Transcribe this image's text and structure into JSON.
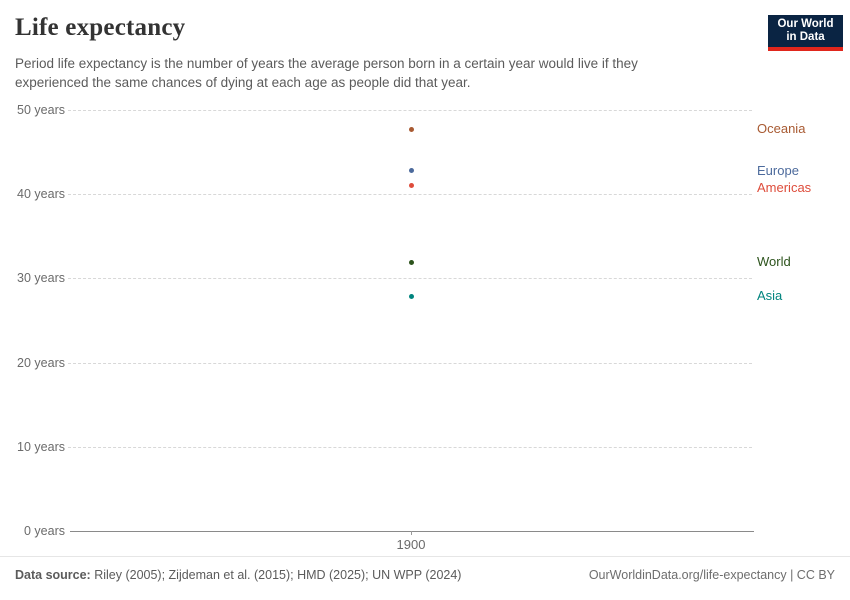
{
  "header": {
    "title": "Life expectancy",
    "subtitle": "Period life expectancy is the number of years the average person born in a certain year would live if they experienced the same chances of dying at each age as people did that year.",
    "logo": {
      "line1": "Our World",
      "line2": "in Data",
      "bg_color": "#0a2443",
      "accent_color": "#e0261c"
    }
  },
  "chart_data": {
    "type": "scatter",
    "x": [
      1900
    ],
    "series": [
      {
        "name": "Oceania",
        "values": [
          47.7
        ],
        "color": "#a85a32"
      },
      {
        "name": "Europe",
        "values": [
          42.8
        ],
        "color": "#4c6a9c"
      },
      {
        "name": "Americas",
        "values": [
          41.0
        ],
        "color": "#de4c3b"
      },
      {
        "name": "World",
        "values": [
          31.9
        ],
        "color": "#2c531c"
      },
      {
        "name": "Asia",
        "values": [
          27.9
        ],
        "color": "#00847e"
      }
    ],
    "title": "Life expectancy",
    "xlabel": "",
    "ylabel": "",
    "ylim": [
      0,
      50
    ],
    "yticks": [
      0,
      10,
      20,
      30,
      40,
      50
    ],
    "ytick_suffix": " years",
    "xticks": [
      1900
    ],
    "grid": "horizontal-dashed",
    "legend_position": "right-of-points"
  },
  "footer": {
    "datasource_label": "Data source:",
    "datasource_text": " Riley (2005); Zijdeman et al. (2015); HMD (2025); UN WPP (2024)",
    "credit": "OurWorldinData.org/life-expectancy | CC BY"
  }
}
